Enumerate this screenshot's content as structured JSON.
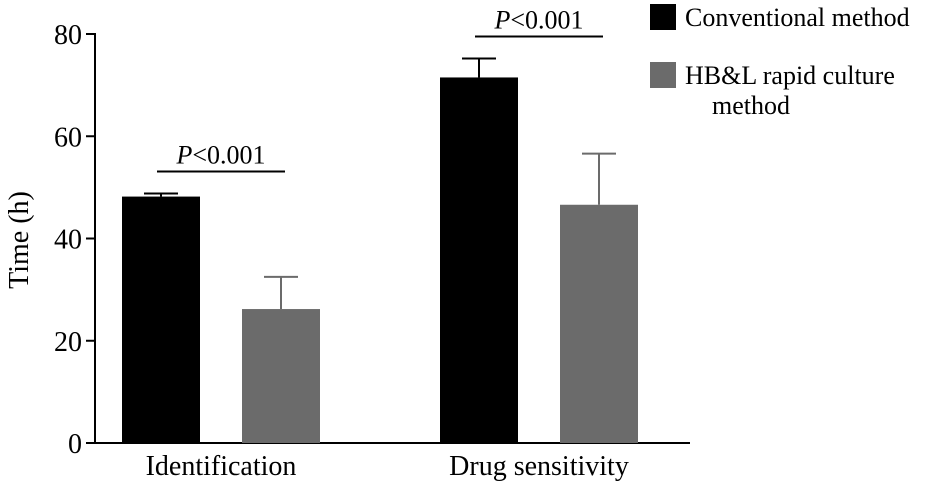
{
  "chart_data": {
    "type": "bar",
    "title": "",
    "xlabel": "",
    "ylabel": "Time (h)",
    "ylim": [
      0,
      80
    ],
    "yticks": [
      0,
      20,
      40,
      60,
      80
    ],
    "categories": [
      "Identification",
      "Drug sensitivity"
    ],
    "series": [
      {
        "name": "Conventional method",
        "color": "#000000",
        "values": [
          48.2,
          71.5
        ],
        "errors": [
          0.6,
          3.7
        ]
      },
      {
        "name": "HB&L rapid culture method",
        "color": "#6b6b6b",
        "values": [
          26.2,
          46.6
        ],
        "errors": [
          6.3,
          10.0
        ]
      }
    ],
    "legend": {
      "position": "top-right",
      "entries": [
        {
          "lines": [
            "Conventional method"
          ]
        },
        {
          "lines": [
            "HB&L rapid culture",
            "method"
          ]
        }
      ]
    },
    "annotations": [
      {
        "category": "Identification",
        "italic": "P",
        "text": "<0.001"
      },
      {
        "category": "Drug sensitivity",
        "italic": "P",
        "text": "<0.001"
      }
    ]
  }
}
